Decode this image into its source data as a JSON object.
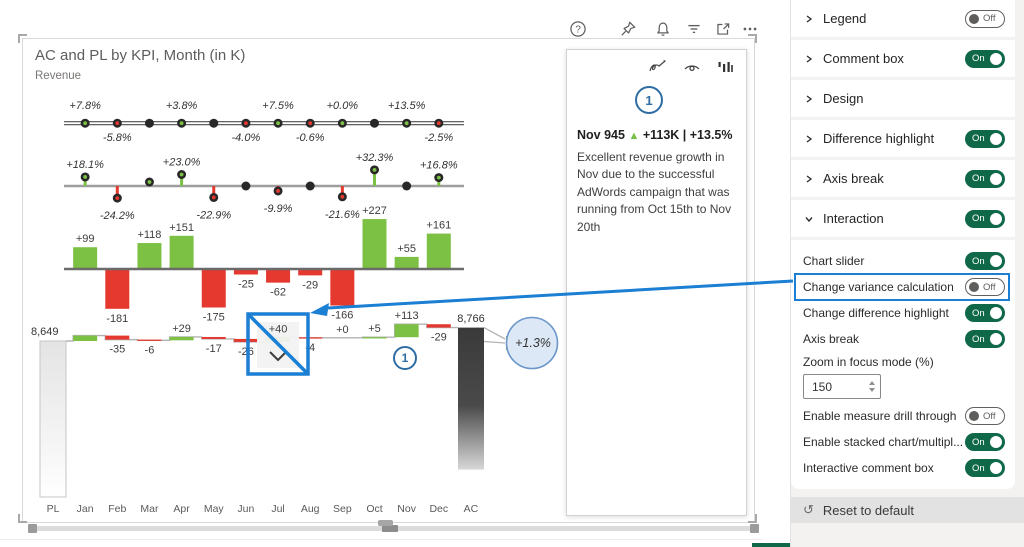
{
  "colors": {
    "green": "#7cc143",
    "red": "#e5392f",
    "blue": "#1b7fd4",
    "toggle_on": "#0f6848",
    "dark_dot": "#282828",
    "badge_fill": "#dce8f6",
    "badge_stroke": "#6b96c9"
  },
  "visual": {
    "title": "AC and PL by KPI, Month (in K)",
    "subtitle": "Revenue"
  },
  "toolbar": {
    "icons": [
      "help",
      "pin",
      "notifications",
      "filter",
      "focus-mode",
      "more-options"
    ]
  },
  "chart_data": {
    "type": "bar",
    "title": "AC and PL by KPI, Month (in K)",
    "group": "Revenue",
    "categories": [
      "Jan",
      "Feb",
      "Mar",
      "Apr",
      "May",
      "Jun",
      "Jul",
      "Aug",
      "Sep",
      "Oct",
      "Nov",
      "Dec"
    ],
    "axis_categories": [
      "PL",
      "Jan",
      "Feb",
      "Mar",
      "Apr",
      "May",
      "Jun",
      "Jul",
      "Aug",
      "Sep",
      "Oct",
      "Nov",
      "Dec",
      "AC"
    ],
    "rows": [
      {
        "name": "variance-pct-dots",
        "type": "scatter",
        "unit": "%",
        "values": [
          7.8,
          -5.8,
          null,
          3.8,
          null,
          -4.0,
          7.5,
          -0.6,
          0.0,
          null,
          13.5,
          -2.5
        ],
        "labels": [
          "+7.8%",
          "-5.8%",
          null,
          "+3.8%",
          null,
          "-4.0%",
          "+7.5%",
          "-0.6%",
          "+0.0%",
          null,
          "+13.5%",
          "-2.5%"
        ]
      },
      {
        "name": "variance-pct-pins",
        "type": "scatter",
        "unit": "%",
        "values": [
          18.1,
          -24.2,
          8.0,
          23.0,
          -22.9,
          0.0,
          -9.9,
          0.0,
          -21.6,
          32.3,
          0.0,
          16.8
        ],
        "labels": [
          "+18.1%",
          "-24.2%",
          null,
          "+23.0%",
          "-22.9%",
          null,
          "-9.9%",
          null,
          "-21.6%",
          "+32.3%",
          null,
          "+16.8%"
        ]
      },
      {
        "name": "variance-absolute-bars",
        "type": "bar",
        "values": [
          99,
          -181,
          118,
          151,
          -175,
          -25,
          -62,
          -29,
          -166,
          227,
          55,
          161
        ],
        "labels": [
          "+99",
          "-181",
          "+118",
          "+151",
          "-175",
          "-25",
          "-62",
          "-29",
          "-166",
          "+227",
          "+55",
          "+161"
        ]
      },
      {
        "name": "waterfall",
        "type": "bar",
        "start": 8649,
        "start_label": "8,649",
        "end": 8766,
        "end_label": "8,766",
        "values": [
          47,
          -35,
          -6,
          29,
          -17,
          -26,
          40,
          -4,
          0,
          5,
          113,
          -29
        ],
        "labels": [
          null,
          "-35",
          "-6",
          "+29",
          "-17",
          "-26",
          "+40",
          "-4",
          "+0",
          "+5",
          "+113",
          "-29"
        ],
        "end_badge": "+1.3%",
        "comment_marker": "1",
        "crossed_out_value": "+40"
      }
    ]
  },
  "comment": {
    "number": "1",
    "title": "Nov 945",
    "arrow": "▲",
    "delta": "+113K | +13.5%",
    "body": "Excellent revenue growth in Nov due to the successful AdWords campaign that was running from Oct 15th to Nov 20th",
    "toolbar_icons": [
      "edit-pen",
      "visibility",
      "comment-chart"
    ]
  },
  "panel": {
    "sections": [
      {
        "label": "Legend",
        "state": "Off"
      },
      {
        "label": "Comment box",
        "state": "On"
      },
      {
        "label": "Design",
        "state": ""
      },
      {
        "label": "Difference highlight",
        "state": "On"
      },
      {
        "label": "Axis break",
        "state": "On"
      },
      {
        "label": "Interaction",
        "state": "On"
      }
    ],
    "interaction_items": [
      {
        "label": "Chart slider",
        "state": "On"
      },
      {
        "label": "Change variance calculation",
        "state": "Off"
      },
      {
        "label": "Change difference highlight",
        "state": "On"
      },
      {
        "label": "Axis break",
        "state": "On"
      },
      {
        "label": "Zoom in focus mode (%)",
        "value": "150"
      },
      {
        "label": "Enable measure drill through",
        "state": "Off"
      },
      {
        "label": "Enable stacked chart/multipl...",
        "state": "On"
      },
      {
        "label": "Interactive comment box",
        "state": "On"
      }
    ],
    "reset_label": "Reset to default"
  }
}
